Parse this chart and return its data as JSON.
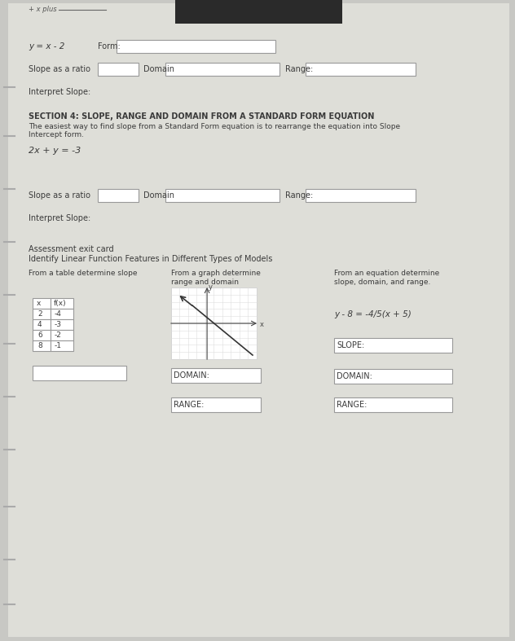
{
  "bg_color": "#c8c8c4",
  "paper_color": "#deded8",
  "text_color": "#3a3a3a",
  "box_edge_color": "#999999",
  "title_top": "+ x plus",
  "section1_equation": "y = x - 2",
  "section1_form_label": "Form:",
  "section1_slope_label": "Slope as a ratio",
  "section1_domain_label": "Domain",
  "section1_range_label": "Range:",
  "section1_interpret": "Interpret Slope:",
  "section2_title": "SECTION 4: SLOPE, RANGE AND DOMAIN FROM A STANDARD FORM EQUATION",
  "section2_body1": "The easiest way to find slope from a Standard Form equation is to rearrange the equation into Slope",
  "section2_body2": "Intercept form.",
  "section2_equation": "2x + y = -3",
  "section2_slope_label": "Slope as a ratio",
  "section2_domain_label": "Domain",
  "section2_range_label": "Range:",
  "section2_interpret": "Interpret Slope:",
  "assessment_title": "Assessment exit card",
  "assessment_subtitle": "Identify Linear Function Features in Different Types of Models",
  "col1_header": "From a table determine slope",
  "col2_header_1": "From a graph determine",
  "col2_header_2": "range and domain",
  "col3_header_1": "From an equation determine",
  "col3_header_2": "slope, domain, and range.",
  "table_headers": [
    "x",
    "f(x)"
  ],
  "table_data": [
    [
      2,
      -4
    ],
    [
      4,
      -3
    ],
    [
      6,
      -2
    ],
    [
      8,
      -1
    ]
  ],
  "equation3": "y - 8 = -4/5(x + 5)",
  "slope_label": "SLOPE:",
  "domain_label": "DOMAIN:",
  "range_label": "RANGE:",
  "left_margin_marks_y": [
    680,
    620,
    555,
    490,
    425,
    365,
    300,
    235,
    165,
    100,
    45
  ]
}
